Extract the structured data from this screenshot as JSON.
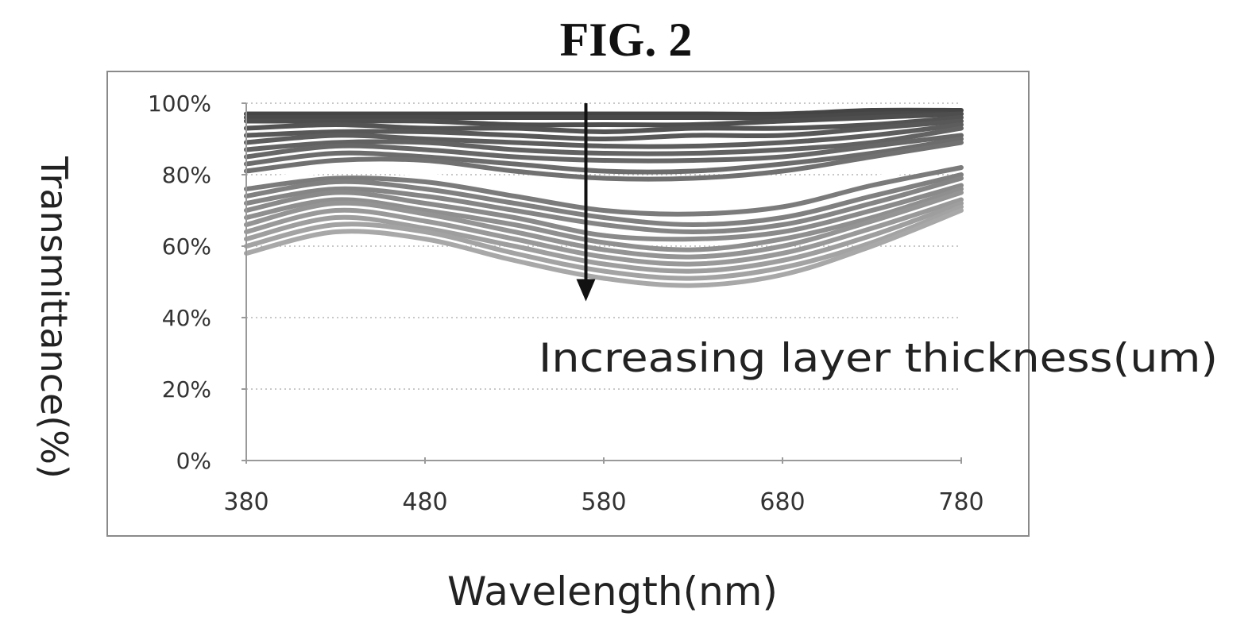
{
  "figure": {
    "title": "FIG. 2"
  },
  "chart_data": {
    "type": "line",
    "title": "",
    "xlabel": "Wavelength(nm)",
    "ylabel": "Transmittance(%)",
    "x_ticks": [
      380,
      480,
      580,
      680,
      780
    ],
    "x_tick_labels": [
      "380",
      "480",
      "580",
      "680",
      "780"
    ],
    "y_ticks": [
      0,
      20,
      40,
      60,
      80,
      100
    ],
    "y_tick_labels": [
      "0%",
      "20%",
      "40%",
      "60%",
      "80%",
      "100%"
    ],
    "xlim": [
      380,
      780
    ],
    "ylim": [
      0,
      100
    ],
    "grid": true,
    "legend": "none",
    "annotation": {
      "text": "Increasing layer thickness(um)",
      "arrow_x": 570,
      "arrow_from_y": 100,
      "arrow_to_y": 45
    },
    "highlighted_curve_index": 10,
    "colors": {
      "dark_line": "#444444",
      "light_line": "#a8a8a8",
      "highlight": "#ffffff"
    },
    "x": [
      380,
      430,
      480,
      530,
      580,
      630,
      680,
      730,
      780
    ],
    "series": [
      {
        "values": [
          97,
          97,
          97,
          97,
          97,
          97,
          97,
          98,
          98
        ]
      },
      {
        "values": [
          96,
          96,
          96,
          96,
          96,
          96,
          96,
          97,
          97
        ]
      },
      {
        "values": [
          95,
          95,
          95,
          94,
          94,
          94,
          95,
          96,
          97
        ]
      },
      {
        "values": [
          93,
          94,
          93,
          93,
          92,
          93,
          93,
          94,
          96
        ]
      },
      {
        "values": [
          91,
          92,
          92,
          91,
          90,
          91,
          91,
          93,
          95
        ]
      },
      {
        "values": [
          89,
          91,
          90,
          89,
          88,
          88,
          89,
          91,
          94
        ]
      },
      {
        "values": [
          87,
          89,
          89,
          87,
          86,
          86,
          87,
          89,
          93
        ]
      },
      {
        "values": [
          85,
          88,
          87,
          85,
          84,
          84,
          85,
          88,
          91
        ]
      },
      {
        "values": [
          83,
          86,
          85,
          83,
          81,
          81,
          83,
          86,
          90
        ]
      },
      {
        "values": [
          81,
          84,
          84,
          81,
          79,
          79,
          81,
          85,
          89
        ]
      },
      {
        "values": [
          78,
          81,
          80,
          76,
          73,
          72,
          74,
          79,
          84
        ]
      },
      {
        "values": [
          76,
          79,
          78,
          74,
          70,
          69,
          71,
          77,
          82
        ]
      },
      {
        "values": [
          74,
          78,
          76,
          72,
          68,
          66,
          68,
          74,
          80
        ]
      },
      {
        "values": [
          72,
          76,
          74,
          70,
          66,
          64,
          66,
          72,
          79
        ]
      },
      {
        "values": [
          70,
          75,
          72,
          68,
          63,
          62,
          64,
          70,
          77
        ]
      },
      {
        "values": [
          68,
          73,
          70,
          66,
          61,
          59,
          62,
          68,
          76
        ]
      },
      {
        "values": [
          66,
          72,
          69,
          64,
          59,
          57,
          60,
          67,
          75
        ]
      },
      {
        "values": [
          64,
          70,
          67,
          62,
          57,
          55,
          58,
          65,
          73
        ]
      },
      {
        "values": [
          62,
          68,
          65,
          60,
          55,
          53,
          56,
          63,
          72
        ]
      },
      {
        "values": [
          60,
          66,
          64,
          58,
          53,
          51,
          54,
          61,
          71
        ]
      },
      {
        "values": [
          58,
          64,
          62,
          56,
          51,
          49,
          52,
          60,
          70
        ]
      }
    ]
  }
}
